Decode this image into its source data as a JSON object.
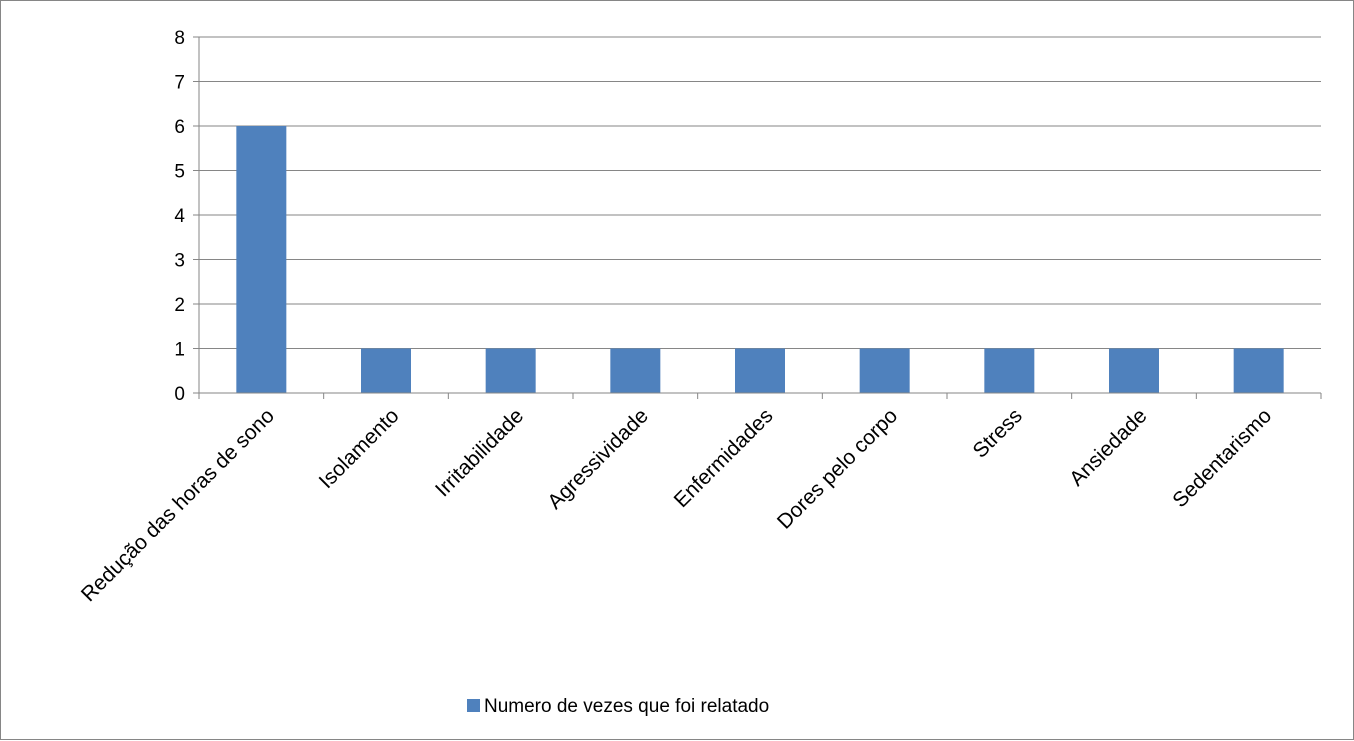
{
  "chart_data": {
    "type": "bar",
    "categories": [
      "Redução das horas de sono",
      "Isolamento",
      "Irritabilidade",
      "Agressividade",
      "Enfermidades",
      "Dores pelo corpo",
      "Stress",
      "Ansiedade",
      "Sedentarismo"
    ],
    "series": [
      {
        "name": "Numero de vezes que foi relatado",
        "values": [
          6,
          1,
          1,
          1,
          1,
          1,
          1,
          1,
          1
        ]
      }
    ],
    "yticks": [
      "0",
      "1",
      "2",
      "3",
      "4",
      "5",
      "6",
      "7",
      "8"
    ],
    "ylim": [
      0,
      8
    ],
    "grid": true,
    "legend_position": "bottom",
    "colors": {
      "bar": "#4F81BD",
      "grid": "#868686",
      "axis": "#868686"
    }
  }
}
